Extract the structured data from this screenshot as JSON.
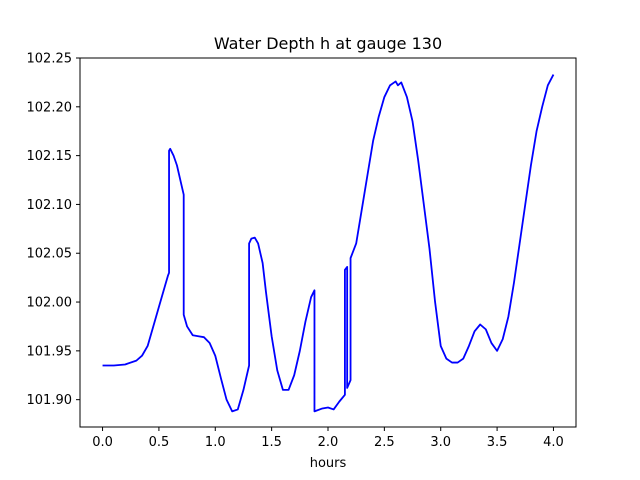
{
  "chart_data": {
    "type": "line",
    "title": "Water Depth h at gauge 130",
    "xlabel": "hours",
    "ylabel": "",
    "xlim": [
      -0.2,
      4.2
    ],
    "ylim": [
      101.872,
      102.25
    ],
    "xticks": [
      0.0,
      0.5,
      1.0,
      1.5,
      2.0,
      2.5,
      3.0,
      3.5,
      4.0
    ],
    "xtick_labels": [
      "0.0",
      "0.5",
      "1.0",
      "1.5",
      "2.0",
      "2.5",
      "3.0",
      "3.5",
      "4.0"
    ],
    "yticks": [
      101.9,
      101.95,
      102.0,
      102.05,
      102.1,
      102.15,
      102.2,
      102.25
    ],
    "ytick_labels": [
      "101.90",
      "101.95",
      "102.00",
      "102.05",
      "102.10",
      "102.15",
      "102.20",
      "102.25"
    ],
    "grid": false,
    "series": [
      {
        "color": "#0000ff",
        "points": [
          [
            0.0,
            101.935
          ],
          [
            0.1,
            101.935
          ],
          [
            0.2,
            101.936
          ],
          [
            0.3,
            101.94
          ],
          [
            0.35,
            101.945
          ],
          [
            0.4,
            101.955
          ],
          [
            0.45,
            101.975
          ],
          [
            0.5,
            101.995
          ],
          [
            0.55,
            102.015
          ],
          [
            0.58,
            102.027
          ],
          [
            0.59,
            102.03
          ],
          [
            0.59,
            102.155
          ],
          [
            0.6,
            102.157
          ],
          [
            0.63,
            102.15
          ],
          [
            0.66,
            102.14
          ],
          [
            0.7,
            102.12
          ],
          [
            0.72,
            102.11
          ],
          [
            0.72,
            101.987
          ],
          [
            0.75,
            101.975
          ],
          [
            0.8,
            101.966
          ],
          [
            0.85,
            101.965
          ],
          [
            0.9,
            101.964
          ],
          [
            0.95,
            101.958
          ],
          [
            1.0,
            101.945
          ],
          [
            1.05,
            101.922
          ],
          [
            1.1,
            101.9
          ],
          [
            1.15,
            101.888
          ],
          [
            1.2,
            101.89
          ],
          [
            1.25,
            101.91
          ],
          [
            1.3,
            101.935
          ],
          [
            1.3,
            102.06
          ],
          [
            1.32,
            102.065
          ],
          [
            1.35,
            102.066
          ],
          [
            1.38,
            102.06
          ],
          [
            1.42,
            102.04
          ],
          [
            1.45,
            102.01
          ],
          [
            1.5,
            101.965
          ],
          [
            1.55,
            101.93
          ],
          [
            1.6,
            101.91
          ],
          [
            1.65,
            101.91
          ],
          [
            1.7,
            101.925
          ],
          [
            1.75,
            101.95
          ],
          [
            1.8,
            101.98
          ],
          [
            1.85,
            102.005
          ],
          [
            1.88,
            102.012
          ],
          [
            1.88,
            101.888
          ],
          [
            1.95,
            101.891
          ],
          [
            2.0,
            101.892
          ],
          [
            2.05,
            101.89
          ],
          [
            2.1,
            101.898
          ],
          [
            2.15,
            101.905
          ],
          [
            2.15,
            102.033
          ],
          [
            2.17,
            102.036
          ],
          [
            2.17,
            101.912
          ],
          [
            2.2,
            101.92
          ],
          [
            2.2,
            102.045
          ],
          [
            2.25,
            102.06
          ],
          [
            2.3,
            102.095
          ],
          [
            2.35,
            102.13
          ],
          [
            2.4,
            102.165
          ],
          [
            2.45,
            102.19
          ],
          [
            2.5,
            102.21
          ],
          [
            2.55,
            102.222
          ],
          [
            2.6,
            102.226
          ],
          [
            2.62,
            102.222
          ],
          [
            2.65,
            102.225
          ],
          [
            2.7,
            102.21
          ],
          [
            2.75,
            102.185
          ],
          [
            2.8,
            102.145
          ],
          [
            2.85,
            102.1
          ],
          [
            2.9,
            102.055
          ],
          [
            2.95,
            102.0
          ],
          [
            3.0,
            101.955
          ],
          [
            3.05,
            101.942
          ],
          [
            3.1,
            101.938
          ],
          [
            3.15,
            101.938
          ],
          [
            3.2,
            101.942
          ],
          [
            3.25,
            101.955
          ],
          [
            3.3,
            101.97
          ],
          [
            3.35,
            101.977
          ],
          [
            3.4,
            101.972
          ],
          [
            3.45,
            101.958
          ],
          [
            3.5,
            101.95
          ],
          [
            3.55,
            101.962
          ],
          [
            3.6,
            101.985
          ],
          [
            3.65,
            102.02
          ],
          [
            3.7,
            102.06
          ],
          [
            3.75,
            102.1
          ],
          [
            3.8,
            102.14
          ],
          [
            3.85,
            102.175
          ],
          [
            3.9,
            102.2
          ],
          [
            3.95,
            102.222
          ],
          [
            4.0,
            102.233
          ]
        ]
      }
    ]
  }
}
